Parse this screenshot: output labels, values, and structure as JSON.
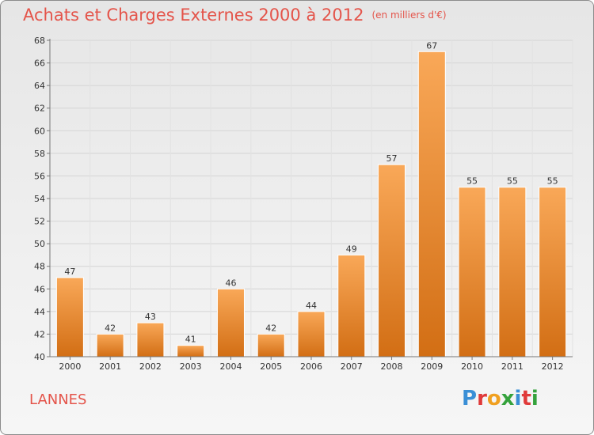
{
  "title": "Achats et Charges Externes 2000 à 2012",
  "unit_label": "(en milliers d'€)",
  "commune": "LANNES",
  "logo": {
    "text": "Proxiti",
    "letter_colors": [
      "#3a8fd6",
      "#e03a3a",
      "#f0a020",
      "#35a23c",
      "#3a8fd6",
      "#e03a3a",
      "#35a23c"
    ]
  },
  "colors": {
    "bar_top": "#f9a858",
    "bar_bottom": "#d26e14",
    "title": "#e4544a"
  },
  "chart_data": {
    "type": "bar",
    "title": "Achats et Charges Externes 2000 à 2012",
    "categories": [
      "2000",
      "2001",
      "2002",
      "2003",
      "2004",
      "2005",
      "2006",
      "2007",
      "2008",
      "2009",
      "2010",
      "2011",
      "2012"
    ],
    "values": [
      47,
      42,
      43,
      41,
      46,
      42,
      44,
      49,
      57,
      67,
      55,
      55,
      55
    ],
    "data_labels": [
      "47",
      "42",
      "43",
      "41",
      "46",
      "42",
      "44",
      "49",
      "57",
      "67",
      "55",
      "55",
      "55"
    ],
    "ylim": [
      40,
      68
    ],
    "yticks": [
      40,
      42,
      44,
      46,
      48,
      50,
      52,
      54,
      56,
      58,
      60,
      62,
      64,
      66,
      68
    ],
    "grid": true,
    "xlabel": "",
    "ylabel": ""
  }
}
